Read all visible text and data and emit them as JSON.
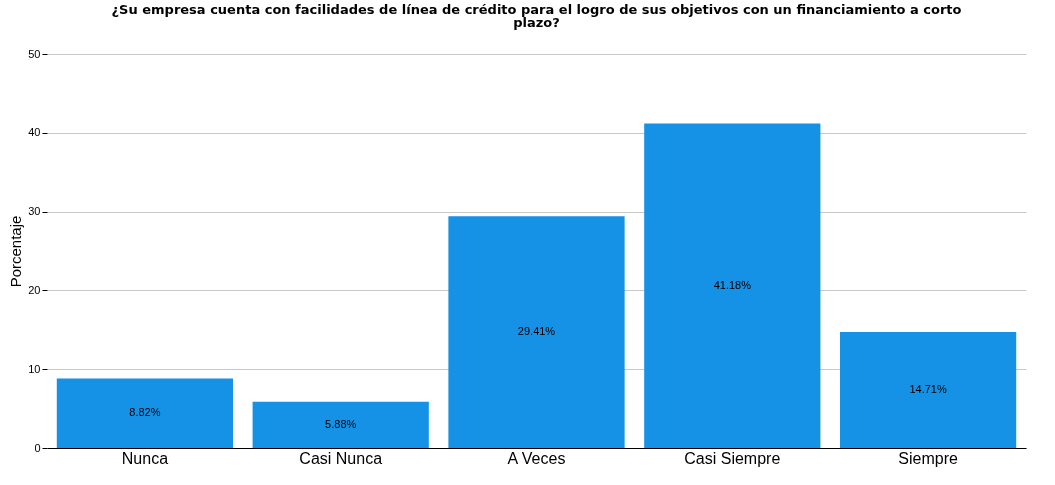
{
  "chart_data": {
    "type": "bar",
    "title": "¿Su empresa cuenta con facilidades de línea de crédito para el logro de sus objetivos con un financiamiento a corto plazo?",
    "ylabel": "Porcentaje",
    "categories": [
      "Nunca",
      "Casi Nunca",
      "A Veces",
      "Casi Siempre",
      "Siempre"
    ],
    "values": [
      8.82,
      5.88,
      29.41,
      41.18,
      14.71
    ],
    "value_labels": [
      "8.82%",
      "5.88%",
      "29.41%",
      "41.18%",
      "14.71%"
    ],
    "color": "#1591e6",
    "ylim": [
      0,
      50
    ],
    "yticks": [
      0,
      10,
      20,
      30,
      40,
      50
    ],
    "grid": "y"
  }
}
